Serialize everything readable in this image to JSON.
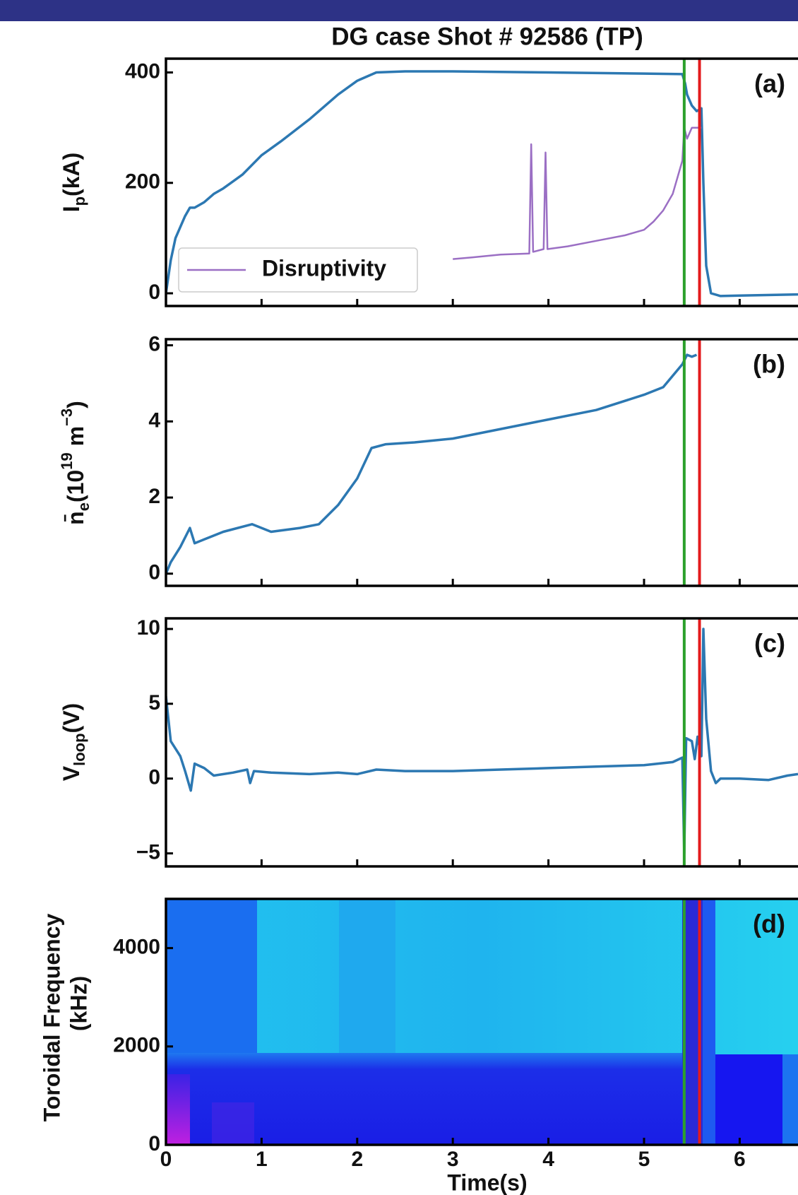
{
  "chart_data": [
    {
      "type": "line",
      "title": "DG case Shot # 92586 (TP)",
      "ylabel": [
        "I",
        "p",
        "(kA)"
      ],
      "annotation": "(a)",
      "xlim": [
        0,
        6.61
      ],
      "xticks": [
        0,
        1,
        2,
        3,
        4,
        5,
        6
      ],
      "ylim": [
        -23,
        425
      ],
      "yticks": [
        0,
        200,
        400
      ],
      "legend": "lower left",
      "series": [
        {
          "color": "#2c78b2",
          "x": [
            0,
            0.05,
            0.1,
            0.2,
            0.25,
            0.3,
            0.4,
            0.5,
            0.6,
            0.8,
            1.0,
            1.2,
            1.5,
            1.8,
            2.0,
            2.2,
            2.5,
            3,
            4,
            5,
            5.4,
            5.43,
            5.45,
            5.5,
            5.55,
            5.6,
            5.62,
            5.65,
            5.7,
            5.8,
            6,
            6.61
          ],
          "values": [
            0,
            60,
            100,
            140,
            155,
            155,
            165,
            180,
            190,
            215,
            250,
            275,
            315,
            360,
            385,
            400,
            402,
            402,
            400,
            398,
            397,
            380,
            360,
            340,
            330,
            335,
            200,
            50,
            0,
            -5,
            -4,
            -2
          ]
        },
        {
          "name": "Disruptivity",
          "color": "#9b6fc4",
          "x": [
            3.0,
            3.2,
            3.5,
            3.8,
            3.82,
            3.84,
            3.95,
            3.97,
            3.99,
            4.2,
            4.5,
            4.8,
            5.0,
            5.1,
            5.2,
            5.3,
            5.35,
            5.4,
            5.42,
            5.45,
            5.5,
            5.6
          ],
          "values": [
            62,
            65,
            70,
            72,
            270,
            75,
            80,
            255,
            80,
            85,
            95,
            105,
            115,
            130,
            150,
            180,
            210,
            240,
            300,
            280,
            300,
            300
          ]
        }
      ],
      "vlines": [
        {
          "x": 5.42,
          "color": "#2ca02c"
        },
        {
          "x": 5.58,
          "color": "#e31a1c"
        }
      ]
    },
    {
      "type": "line",
      "ylabel": [
        "n̄",
        "e",
        "(10",
        "19",
        " m",
        "−3",
        ")"
      ],
      "annotation": "(b)",
      "xlim": [
        0,
        6.61
      ],
      "xticks": [
        0,
        1,
        2,
        3,
        4,
        5,
        6
      ],
      "ylim": [
        -0.32,
        6.16
      ],
      "yticks": [
        0,
        2,
        4,
        6
      ],
      "series": [
        {
          "color": "#2c78b2",
          "x": [
            0,
            0.05,
            0.15,
            0.25,
            0.3,
            0.4,
            0.6,
            0.9,
            1.1,
            1.4,
            1.6,
            1.8,
            2.0,
            2.15,
            2.3,
            2.6,
            3.0,
            3.5,
            4.0,
            4.5,
            5.0,
            5.2,
            5.3,
            5.4,
            5.45,
            5.5,
            5.55
          ],
          "values": [
            0,
            0.3,
            0.7,
            1.2,
            0.8,
            0.9,
            1.1,
            1.3,
            1.1,
            1.2,
            1.3,
            1.8,
            2.5,
            3.3,
            3.4,
            3.45,
            3.55,
            3.8,
            4.05,
            4.3,
            4.7,
            4.9,
            5.2,
            5.5,
            5.75,
            5.7,
            5.75
          ]
        }
      ],
      "vlines": [
        {
          "x": 5.42,
          "color": "#2ca02c"
        },
        {
          "x": 5.58,
          "color": "#e31a1c"
        }
      ]
    },
    {
      "type": "line",
      "ylabel": [
        "V",
        "loop",
        "(V)"
      ],
      "annotation": "(c)",
      "xlim": [
        0,
        6.61
      ],
      "xticks": [
        0,
        1,
        2,
        3,
        4,
        5,
        6
      ],
      "ylim": [
        -5.87,
        10.71
      ],
      "yticks": [
        {
          "value": -5,
          "label": "−5"
        },
        0,
        5,
        10
      ],
      "series": [
        {
          "color": "#2c78b2",
          "x": [
            0,
            0.05,
            0.15,
            0.2,
            0.26,
            0.3,
            0.4,
            0.5,
            0.7,
            0.85,
            0.88,
            0.92,
            1.1,
            1.5,
            1.8,
            2.0,
            2.2,
            2.5,
            3,
            3.5,
            4,
            4.5,
            5,
            5.3,
            5.4,
            5.42,
            5.44,
            5.5,
            5.53,
            5.56,
            5.6,
            5.62,
            5.65,
            5.7,
            5.75,
            5.8,
            6,
            6.3,
            6.5,
            6.61
          ],
          "values": [
            5.5,
            2.5,
            1.5,
            0.5,
            -0.8,
            1,
            0.7,
            0.2,
            0.4,
            0.6,
            -0.3,
            0.5,
            0.4,
            0.3,
            0.4,
            0.3,
            0.6,
            0.5,
            0.5,
            0.6,
            0.7,
            0.8,
            0.9,
            1.1,
            1.4,
            -5,
            2.7,
            2.5,
            1.3,
            2.8,
            1.5,
            10,
            4,
            0.5,
            -0.3,
            0,
            0,
            -0.1,
            0.2,
            0.3
          ]
        }
      ],
      "vlines": [
        {
          "x": 5.42,
          "color": "#2ca02c"
        },
        {
          "x": 5.58,
          "color": "#e31a1c"
        }
      ]
    },
    {
      "type": "heatmap",
      "ylabel": [
        "Toroidal Frequency",
        "(kHz)"
      ],
      "annotation": "(d)",
      "xlabel": "Time(s)",
      "xlim": [
        0,
        6.61
      ],
      "xticks": [
        0,
        1,
        2,
        3,
        4,
        5,
        6
      ],
      "ylim": [
        0,
        5000
      ],
      "yticks": [
        0,
        2000,
        4000
      ],
      "vlines": [
        {
          "x": 5.42,
          "color": "#2ca02c"
        },
        {
          "x": 5.58,
          "color": "#e31a1c"
        }
      ]
    }
  ]
}
